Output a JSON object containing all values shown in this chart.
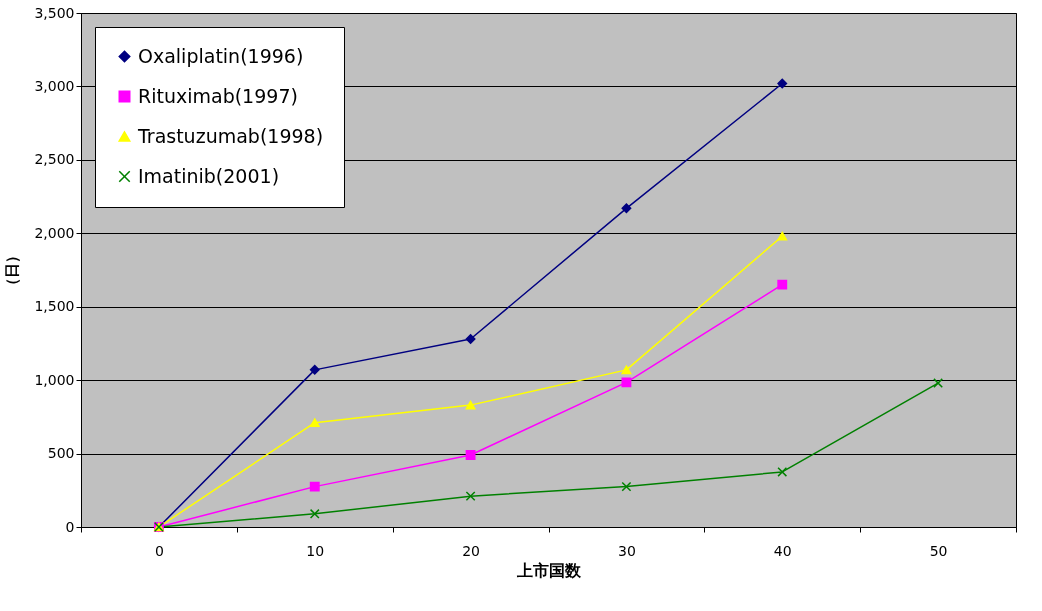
{
  "chart_data": {
    "type": "line",
    "xlabel": "上市国数",
    "ylabel": "（日）",
    "categories": [
      "0",
      "10",
      "20",
      "30",
      "40",
      "50"
    ],
    "series": [
      {
        "name": "Oxaliplatin(1996)",
        "color": "#000080",
        "marker": "diamond",
        "values": [
          0,
          1070,
          1280,
          2170,
          3020,
          null
        ]
      },
      {
        "name": "Rituximab(1997)",
        "color": "#ff00ff",
        "marker": "square",
        "values": [
          0,
          275,
          490,
          985,
          1650,
          null
        ]
      },
      {
        "name": "Trastuzumab(1998)",
        "color": "#ffff00",
        "marker": "triangle",
        "values": [
          0,
          710,
          830,
          1070,
          1980,
          null
        ]
      },
      {
        "name": "Imatinib(2001)",
        "color": "#008000",
        "marker": "cross",
        "values": [
          0,
          90,
          210,
          275,
          375,
          980
        ]
      }
    ],
    "ylim": [
      0,
      3500
    ],
    "yticks": [
      0,
      500,
      {
        "value": 1000,
        "label": "1,000"
      },
      {
        "value": 1500,
        "label": "1,500"
      },
      {
        "value": 2000,
        "label": "2,000"
      },
      {
        "value": 2500,
        "label": "2,500"
      },
      {
        "value": 3000,
        "label": "3,000"
      },
      {
        "value": 3500,
        "label": "3,500"
      }
    ],
    "grid": "y",
    "legend": "top left"
  }
}
